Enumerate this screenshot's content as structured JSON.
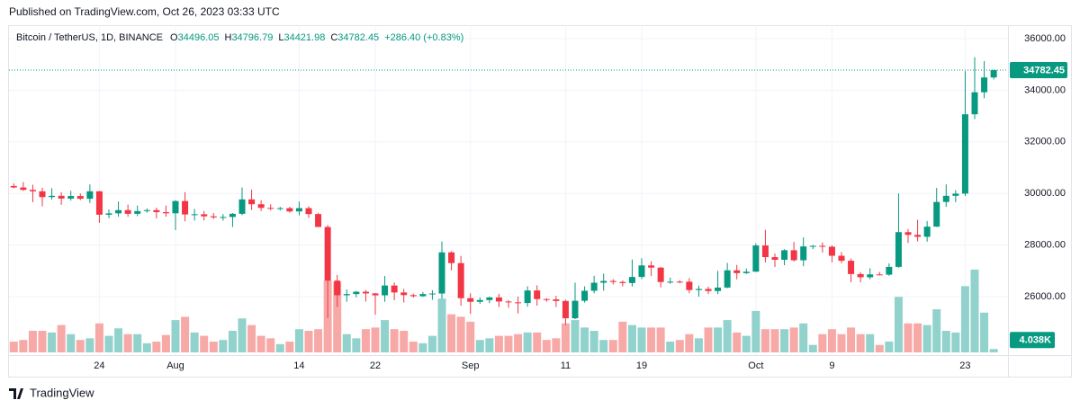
{
  "published": "Published on TradingView.com, Oct 26, 2023 03:33 UTC",
  "footer": "TradingView",
  "chart_data": {
    "type": "candlestick",
    "title": "Bitcoin / TetherUS, 1D, BINANCE",
    "ohlc_labels": [
      "O",
      "H",
      "L",
      "C"
    ],
    "change_label": "+286.40 (+0.83%)",
    "up_color": "#089981",
    "down_color": "#f23645",
    "up_volume_color": "#92d2cc",
    "down_volume_color": "#f7a9a7",
    "grid": true,
    "ylim": [
      23840,
      36453
    ],
    "yticks": [
      {
        "value": 26000,
        "label": "26000.00"
      },
      {
        "value": 28000,
        "label": "28000.00"
      },
      {
        "value": 30000,
        "label": "30000.00"
      },
      {
        "value": 32000,
        "label": "32000.00"
      },
      {
        "value": 34000,
        "label": "34000.00"
      },
      {
        "value": 36000,
        "label": "36000.00"
      }
    ],
    "xlim": [
      -0.5,
      104.5
    ],
    "xticks": [
      {
        "value": 9,
        "label": "24"
      },
      {
        "value": 17,
        "label": "Aug"
      },
      {
        "value": 30,
        "label": "14"
      },
      {
        "value": 38,
        "label": "22"
      },
      {
        "value": 48,
        "label": "Sep"
      },
      {
        "value": 58,
        "label": "11"
      },
      {
        "value": 66,
        "label": "19"
      },
      {
        "value": 78,
        "label": "Oct"
      },
      {
        "value": 86,
        "label": "9"
      },
      {
        "value": 100,
        "label": "23"
      }
    ],
    "volume_lim": [
      0,
      393
    ],
    "volume_label": "4.038K",
    "open": [
      30289,
      30231,
      30138,
      30083,
      29859,
      29909,
      29800,
      29901,
      29794,
      30083,
      29176,
      29228,
      29354,
      29210,
      29316,
      29353,
      29275,
      29230,
      29705,
      29186,
      29193,
      29113,
      29072,
      29088,
      29211,
      29770,
      29582,
      29441,
      29426,
      29430,
      29303,
      29430,
      29200,
      28700,
      26621,
      26054,
      26100,
      26190,
      26125,
      26051,
      26431,
      26162,
      26059,
      26018,
      26101,
      26120,
      27717,
      27300,
      25940,
      25800,
      25868,
      25969,
      25812,
      25779,
      25753,
      26240,
      25905,
      25895,
      25832,
      25162,
      25840,
      26228,
      26539,
      26608,
      26568,
      26527,
      26762,
      27210,
      27125,
      26568,
      26580,
      26579,
      26256,
      26298,
      26217,
      26352,
      27021,
      26911,
      26967,
      27983,
      27531,
      27429,
      27799,
      27410,
      27946,
      27968,
      27935,
      27584,
      27391,
      26875,
      26752,
      26862,
      26852,
      27154,
      28500,
      28395,
      28320,
      28713,
      29670,
      29909,
      29993,
      33069,
      33922,
      34496.05
    ],
    "high": [
      30390,
      30440,
      30340,
      30220,
      30200,
      30050,
      30100,
      30000,
      30350,
      30100,
      29380,
      29690,
      29570,
      29530,
      29420,
      29450,
      29530,
      29740,
      30050,
      29400,
      29320,
      29240,
      29200,
      29240,
      30230,
      30150,
      29740,
      29580,
      29480,
      29480,
      29690,
      29500,
      29250,
      28780,
      26840,
      26280,
      26220,
      26260,
      26140,
      26800,
      26550,
      26300,
      26120,
      26180,
      26250,
      28140,
      27760,
      27580,
      26130,
      25970,
      26000,
      26110,
      25860,
      26000,
      26400,
      26440,
      25940,
      26030,
      25880,
      26540,
      26400,
      26810,
      26890,
      26680,
      26630,
      27440,
      27490,
      27370,
      27150,
      26740,
      26640,
      26720,
      26430,
      26390,
      27000,
      27310,
      27230,
      27090,
      28070,
      28590,
      27670,
      27840,
      28120,
      28300,
      28000,
      28100,
      27990,
      27730,
      27480,
      26950,
      27100,
      26960,
      27290,
      30000,
      28620,
      28980,
      28930,
      30210,
      30350,
      30130,
      34740,
      35280,
      35130,
      34796.79
    ],
    "low": [
      30200,
      30100,
      29660,
      29500,
      29760,
      29560,
      29720,
      29740,
      29630,
      28860,
      29040,
      29100,
      29100,
      29120,
      29250,
      29030,
      29100,
      28580,
      28920,
      28950,
      28950,
      29010,
      28950,
      28700,
      29160,
      29360,
      29320,
      29340,
      29340,
      29250,
      29150,
      29050,
      28700,
      25170,
      25600,
      25800,
      25970,
      25810,
      25300,
      25800,
      25860,
      25770,
      25960,
      25990,
      25880,
      25920,
      27020,
      25650,
      25330,
      25720,
      25750,
      25600,
      25570,
      25350,
      25610,
      25650,
      25800,
      25600,
      24900,
      25130,
      25770,
      26130,
      26230,
      26470,
      26400,
      26390,
      26680,
      26800,
      26360,
      26500,
      26520,
      26130,
      26000,
      26100,
      26100,
      26330,
      26670,
      26880,
      26960,
      27330,
      27150,
      27220,
      27360,
      27180,
      27840,
      27710,
      27330,
      27300,
      26560,
      26550,
      26670,
      26820,
      26810,
      27120,
      28080,
      28140,
      28130,
      28700,
      29480,
      29660,
      29900,
      32880,
      33690,
      34421.98
    ],
    "close": [
      30231,
      30138,
      30083,
      29859,
      29909,
      29800,
      29901,
      29794,
      30083,
      29176,
      29228,
      29354,
      29210,
      29316,
      29353,
      29275,
      29230,
      29705,
      29186,
      29193,
      29113,
      29072,
      29088,
      29211,
      29770,
      29582,
      29441,
      29426,
      29430,
      29303,
      29430,
      29200,
      28700,
      26621,
      26054,
      26100,
      26190,
      26125,
      26051,
      26431,
      26162,
      26059,
      26018,
      26101,
      26120,
      27717,
      27300,
      25940,
      25800,
      25868,
      25969,
      25812,
      25779,
      25753,
      26240,
      25905,
      25895,
      25832,
      25162,
      25840,
      26228,
      26539,
      26608,
      26568,
      26527,
      26762,
      27210,
      27125,
      26568,
      26580,
      26579,
      26256,
      26298,
      26217,
      26352,
      27021,
      26911,
      26967,
      27983,
      27531,
      27429,
      27799,
      27410,
      27946,
      27968,
      27935,
      27584,
      27391,
      26875,
      26752,
      26862,
      26852,
      27154,
      28500,
      28395,
      28320,
      28713,
      29670,
      29909,
      29993,
      33069,
      33922,
      34496.05,
      34782.45
    ],
    "volume": [
      13,
      15,
      26,
      26,
      24,
      33,
      22,
      15,
      17,
      35,
      20,
      29,
      22,
      22,
      11,
      13,
      21,
      39,
      43,
      24,
      20,
      13,
      15,
      26,
      41,
      33,
      20,
      17,
      10,
      13,
      28,
      26,
      28,
      87,
      85,
      22,
      17,
      28,
      30,
      39,
      28,
      26,
      13,
      11,
      20,
      65,
      46,
      43,
      37,
      15,
      17,
      20,
      20,
      22,
      24,
      24,
      15,
      17,
      35,
      39,
      30,
      26,
      15,
      15,
      37,
      33,
      30,
      30,
      30,
      13,
      15,
      22,
      17,
      30,
      30,
      39,
      24,
      20,
      50,
      28,
      28,
      28,
      30,
      35,
      9,
      22,
      28,
      22,
      30,
      22,
      22,
      9,
      13,
      67,
      35,
      35,
      33,
      52,
      26,
      24,
      80,
      100,
      48,
      4.038
    ]
  }
}
